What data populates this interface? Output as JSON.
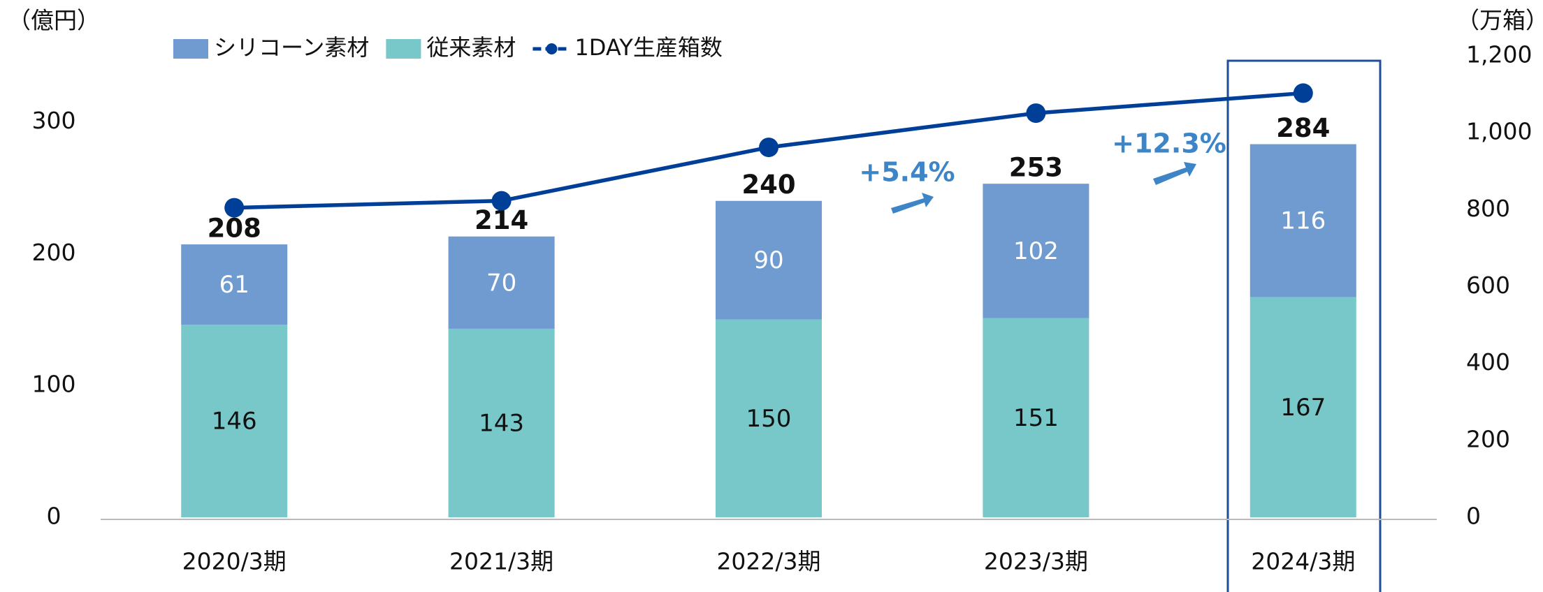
{
  "chart_data": {
    "type": "bar",
    "y_label": "（億円）",
    "y2_label": "（万箱）",
    "categories": [
      "2020/3期",
      "2021/3期",
      "2022/3期",
      "2023/3期",
      "2024/3期"
    ],
    "series": [
      {
        "name": "従来素材",
        "color": "#79c8c9",
        "values": [
          146,
          143,
          150,
          151,
          167
        ]
      },
      {
        "name": "シリコーン素材",
        "color": "#6f9bd1",
        "values": [
          61,
          70,
          90,
          102,
          116
        ]
      },
      {
        "name": "1DAY生産箱数",
        "color": "#003f97",
        "axis": "y2",
        "type": "line",
        "values": [
          805,
          823,
          962,
          1051,
          1103
        ]
      }
    ],
    "totals": [
      208,
      214,
      240,
      253,
      284
    ],
    "annotations": [
      "+5.4%",
      "+12.3%"
    ],
    "ylim": [
      0,
      350
    ],
    "yticks": [
      0,
      100,
      200,
      300
    ],
    "y2lim": [
      0,
      1200
    ],
    "y2ticks": [
      0,
      {
        "value": 200,
        "label": "200"
      },
      {
        "value": 400,
        "label": "400"
      },
      {
        "value": 600,
        "label": "600"
      },
      {
        "value": 800,
        "label": "800"
      },
      {
        "value": 1000,
        "label": "1,000"
      },
      {
        "value": 1200,
        "label": "1,200"
      }
    ],
    "segment_label_colors": [
      "#111111",
      "#ffffff"
    ]
  }
}
